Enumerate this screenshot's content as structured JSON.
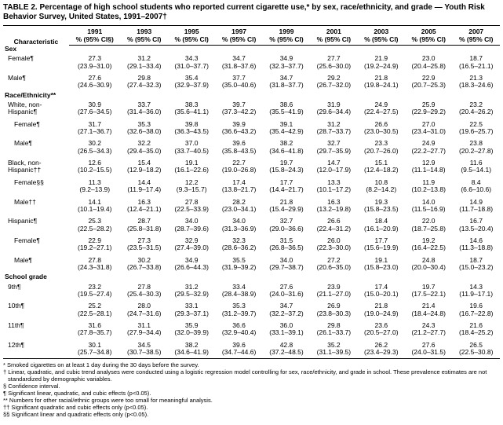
{
  "title": "TABLE 2. Percentage of high school students who reported current cigarette use,* by sex, race/ethnicity, and grade — Youth Risk Behavior Survey, United States, 1991–2007†",
  "columns": {
    "char": "Characteristic",
    "ci_label": "% (95% CI§)",
    "ci_label_plain": "% (95% CI)",
    "years": [
      "1991",
      "1993",
      "1995",
      "1997",
      "1999",
      "2001",
      "2003",
      "2005",
      "2007"
    ]
  },
  "sections": [
    {
      "heading": "Sex",
      "rows": [
        {
          "label": "Female¶",
          "v": [
            "27.3",
            "31.2",
            "34.3",
            "34.7",
            "34.9",
            "27.7",
            "21.9",
            "23.0",
            "18.7"
          ],
          "ci": [
            "(23.9–31.0)",
            "(29.1–33.4)",
            "(31.0–37.7)",
            "(31.8–37.6)",
            "(32.3–37.7)",
            "(25.6–30.0)",
            "(19.2–24.9)",
            "(20.4–25.8)",
            "(16.5–21.1)"
          ]
        },
        {
          "label": "Male¶",
          "v": [
            "27.6",
            "29.8",
            "35.4",
            "37.7",
            "34.7",
            "29.2",
            "21.8",
            "22.9",
            "21.3"
          ],
          "ci": [
            "(24.6–30.9)",
            "(27.4–32.3)",
            "(32.9–37.9)",
            "(35.0–40.6)",
            "(31.8–37.7)",
            "(26.7–32.0)",
            "(19.8–24.1)",
            "(20.7–25.3)",
            "(18.3–24.6)"
          ]
        }
      ]
    },
    {
      "heading": "Race/Ethnicity**",
      "rows": [
        {
          "label": "White, non-Hispanic¶",
          "label_l1": "White, non-",
          "label_l2": "Hispanic¶",
          "v": [
            "30.9",
            "33.7",
            "38.3",
            "39.7",
            "38.6",
            "31.9",
            "24.9",
            "25.9",
            "23.2"
          ],
          "ci": [
            "(27.6–34.5)",
            "(31.4–36.0)",
            "(35.6–41.1)",
            "(37.3–42.2)",
            "(35.5–41.9)",
            "(29.6–34.4)",
            "(22.4–27.5)",
            "(22.9–29.2)",
            "(20.4–26.2)"
          ]
        },
        {
          "label": "Female¶",
          "indent": 2,
          "v": [
            "31.7",
            "35.3",
            "39.8",
            "39.9",
            "39.1",
            "31.2",
            "26.6",
            "27.0",
            "22.5"
          ],
          "ci": [
            "(27.1–36.7)",
            "(32.6–38.0)",
            "(36.3–43.5)",
            "(36.6–43.2)",
            "(35.4–42.9)",
            "(28.7–33.7)",
            "(23.0–30.5)",
            "(23.4–31.0)",
            "(19.6–25.7)"
          ]
        },
        {
          "label": "Male¶",
          "indent": 2,
          "v": [
            "30.2",
            "32.2",
            "37.0",
            "39.6",
            "38.2",
            "32.7",
            "23.3",
            "24.9",
            "23.8"
          ],
          "ci": [
            "(26.5–34.3)",
            "(29.4–35.0)",
            "(33.7–40.5)",
            "(35.8–43.5)",
            "(34.6–41.8)",
            "(29.7–35.9)",
            "(20.7–26.0)",
            "(22.2–27.7)",
            "(20.2–27.8)"
          ]
        },
        {
          "label": "Black, non-Hispanic††",
          "label_l1": "Black, non-",
          "label_l2": "Hispanic††",
          "v": [
            "12.6",
            "15.4",
            "19.1",
            "22.7",
            "19.7",
            "14.7",
            "15.1",
            "12.9",
            "11.6"
          ],
          "ci": [
            "(10.2–15.5)",
            "(12.9–18.2)",
            "(16.1–22.6)",
            "(19.0–26.8)",
            "(15.8–24.3)",
            "(12.0–17.9)",
            "(12.4–18.2)",
            "(11.1–14.8)",
            "(9.5–14.1)"
          ]
        },
        {
          "label": "Female§§",
          "indent": 2,
          "v": [
            "11.3",
            "14.4",
            "12.2",
            "17.4",
            "17.7",
            "13.3",
            "10.8",
            "11.9",
            "8.4"
          ],
          "ci": [
            "(9.2–13.9)",
            "(11.9–17.4)",
            "(9.3–15.7)",
            "(13.8–21.7)",
            "(14.4–21.7)",
            "(10.1–17.2)",
            "(8.2–14.2)",
            "(10.2–13.8)",
            "(6.6–10.6)"
          ]
        },
        {
          "label": "Male††",
          "indent": 2,
          "v": [
            "14.1",
            "16.3",
            "27.8",
            "28.2",
            "21.8",
            "16.3",
            "19.3",
            "14.0",
            "14.9"
          ],
          "ci": [
            "(10.1–19.4)",
            "(12.4–21.1)",
            "(22.5–33.9)",
            "(23.0–34.1)",
            "(15.4–29.9)",
            "(13.2–19.8)",
            "(15.8–23.5)",
            "(11.5–16.9)",
            "(11.7–18.8)"
          ]
        },
        {
          "label": "Hispanic¶",
          "indent": 0,
          "v": [
            "25.3",
            "28.7",
            "34.0",
            "34.0",
            "32.7",
            "26.6",
            "18.4",
            "22.0",
            "16.7"
          ],
          "ci": [
            "(22.5–28.2)",
            "(25.8–31.8)",
            "(28.7–39.6)",
            "(31.3–36.9)",
            "(29.0–36.6)",
            "(22.4–31.2)",
            "(16.1–20.9)",
            "(18.7–25.8)",
            "(13.5–20.4)"
          ]
        },
        {
          "label": "Female¶",
          "indent": 2,
          "v": [
            "22.9",
            "27.3",
            "32.9",
            "32.3",
            "31.5",
            "26.0",
            "17.7",
            "19.2",
            "14.6"
          ],
          "ci": [
            "(19.2–27.1)",
            "(23.5–31.5)",
            "(27.4–39.0)",
            "(28.6–36.2)",
            "(26.8–36.5)",
            "(22.3–30.0)",
            "(15.6–19.9)",
            "(16.4–22.5)",
            "(11.3–18.8)"
          ]
        },
        {
          "label": "Male¶",
          "indent": 2,
          "v": [
            "27.8",
            "30.2",
            "34.9",
            "35.5",
            "34.0",
            "27.2",
            "19.1",
            "24.8",
            "18.7"
          ],
          "ci": [
            "(24.3–31.8)",
            "(26.7–33.8)",
            "(26.6–44.3)",
            "(31.9–39.2)",
            "(29.7–38.7)",
            "(20.6–35.0)",
            "(15.8–23.0)",
            "(20.0–30.4)",
            "(15.0–23.2)"
          ]
        }
      ]
    },
    {
      "heading": "School grade",
      "rows": [
        {
          "label": "9th¶",
          "v": [
            "23.2",
            "27.8",
            "31.2",
            "33.4",
            "27.6",
            "23.9",
            "17.4",
            "19.7",
            "14.3"
          ],
          "ci": [
            "(19.5–27.4)",
            "(25.4–30.3)",
            "(29.5–32.9)",
            "(28.4–38.9)",
            "(24.0–31.6)",
            "(21.1–27.0)",
            "(15.0–20.1)",
            "(17.5–22.1)",
            "(11.9–17.1)"
          ]
        },
        {
          "label": "10th¶",
          "v": [
            "25.2",
            "28.0",
            "33.1",
            "35.3",
            "34.7",
            "26.9",
            "21.8",
            "21.4",
            "19.6"
          ],
          "ci": [
            "(22.5–28.1)",
            "(24.7–31.6)",
            "(29.3–37.1)",
            "(31.2–39.7)",
            "(32.2–37.2)",
            "(23.8–30.3)",
            "(19.0–24.9)",
            "(18.4–24.8)",
            "(16.7–22.8)"
          ]
        },
        {
          "label": "11th¶",
          "v": [
            "31.6",
            "31.1",
            "35.9",
            "36.6",
            "36.0",
            "29.8",
            "23.6",
            "24.3",
            "21.6"
          ],
          "ci": [
            "(27.8–35.7)",
            "(27.9–34.4)",
            "(32.0–39.9)",
            "(32.9–40.4)",
            "(33.1–39.1)",
            "(26.1–33.7)",
            "(20.5–27.0)",
            "(21.2–27.7)",
            "(18.4–25.2)"
          ]
        },
        {
          "label": "12th¶",
          "v": [
            "30.1",
            "34.5",
            "38.2",
            "39.6",
            "42.8",
            "35.2",
            "26.2",
            "27.6",
            "26.5"
          ],
          "ci": [
            "(25.7–34.8)",
            "(30.7–38.5)",
            "(34.6–41.9)",
            "(34.7–44.6)",
            "(37.2–48.5)",
            "(31.1–39.5)",
            "(23.4–29.3)",
            "(24.0–31.5)",
            "(22.5–30.8)"
          ]
        }
      ]
    }
  ],
  "footnotes": [
    "* Smoked cigarettes on at least 1 day during the 30 days before the survey.",
    "† Linear, quadratic, and cubic trend analyses were conducted using a logistic regression model controlling for sex, race/ethnicity, and grade in school. These prevalence estimates are not standardized by demographic variables.",
    "§ Confidence interval.",
    "¶ Significant linear, quadratic, and cubic effects (p<0.05).",
    "** Numbers for other racial/ethnic groups were too small for meaningful analysis.",
    "†† Significant quadratic and cubic effects only (p<0.05).",
    "§§ Significant linear and quadratic effects only (p<0.05)."
  ]
}
